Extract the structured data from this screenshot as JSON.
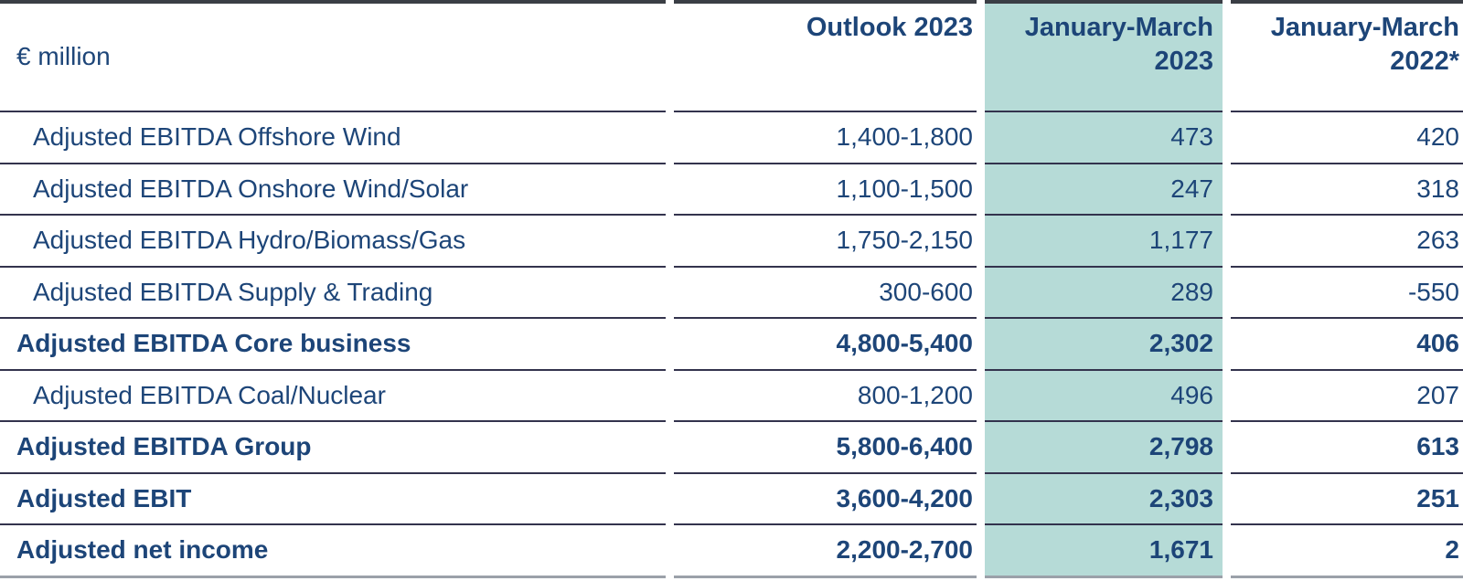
{
  "colors": {
    "text_navy": "#1d4578",
    "highlight_teal": "#b6dbd7",
    "row_line": "#33334d",
    "top_line": "#3a3e45",
    "bottom_line": "#9ba1a9"
  },
  "table": {
    "unit_label": "€ million",
    "columns": [
      {
        "label": "Outlook 2023",
        "highlighted": false
      },
      {
        "label": "January-March 2023",
        "highlighted": true
      },
      {
        "label": "January-March 2022*",
        "highlighted": false
      }
    ],
    "rows": [
      {
        "label": "Adjusted EBITDA Offshore Wind",
        "indented": true,
        "bold": false,
        "outlook": "1,400-1,800",
        "jan_mar_2023": "473",
        "jan_mar_2022": "420"
      },
      {
        "label": "Adjusted EBITDA Onshore Wind/Solar",
        "indented": true,
        "bold": false,
        "outlook": "1,100-1,500",
        "jan_mar_2023": "247",
        "jan_mar_2022": "318"
      },
      {
        "label": "Adjusted EBITDA Hydro/Biomass/Gas",
        "indented": true,
        "bold": false,
        "outlook": "1,750-2,150",
        "jan_mar_2023": "1,177",
        "jan_mar_2022": "263"
      },
      {
        "label": "Adjusted EBITDA Supply & Trading",
        "indented": true,
        "bold": false,
        "outlook": "300-600",
        "jan_mar_2023": "289",
        "jan_mar_2022": "-550"
      },
      {
        "label": "Adjusted EBITDA Core business",
        "indented": false,
        "bold": true,
        "outlook": "4,800-5,400",
        "jan_mar_2023": "2,302",
        "jan_mar_2022": "406"
      },
      {
        "label": "Adjusted EBITDA Coal/Nuclear",
        "indented": true,
        "bold": false,
        "outlook": "800-1,200",
        "jan_mar_2023": "496",
        "jan_mar_2022": "207"
      },
      {
        "label": "Adjusted EBITDA Group",
        "indented": false,
        "bold": true,
        "outlook": "5,800-6,400",
        "jan_mar_2023": "2,798",
        "jan_mar_2022": "613"
      },
      {
        "label": "Adjusted EBIT",
        "indented": false,
        "bold": true,
        "outlook": "3,600-4,200",
        "jan_mar_2023": "2,303",
        "jan_mar_2022": "251"
      },
      {
        "label": "Adjusted net income",
        "indented": false,
        "bold": true,
        "outlook": "2,200-2,700",
        "jan_mar_2023": "1,671",
        "jan_mar_2022": "2"
      }
    ]
  }
}
